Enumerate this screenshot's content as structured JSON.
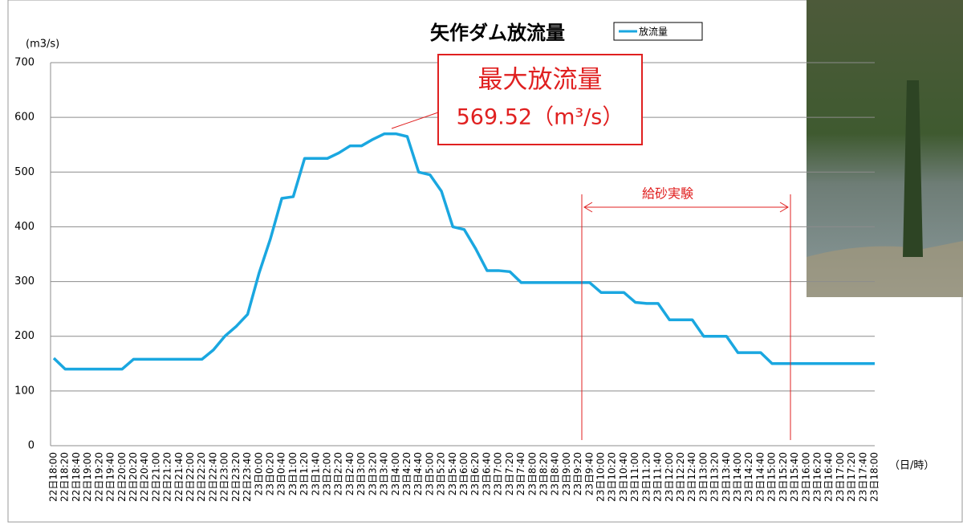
{
  "chart_data": {
    "type": "line",
    "title": "矢作ダム放流量",
    "y_label": "(m3/s)",
    "x_label": "（日/時）",
    "categories": [
      "22日18:00",
      "22日18:20",
      "22日18:40",
      "22日19:00",
      "22日19:20",
      "22日19:40",
      "22日20:00",
      "22日20:20",
      "22日20:40",
      "22日21:00",
      "22日21:20",
      "22日21:40",
      "22日22:00",
      "22日22:20",
      "22日22:40",
      "22日23:00",
      "22日23:20",
      "22日23:40",
      "23日0:00",
      "23日0:20",
      "23日0:40",
      "23日1:00",
      "23日1:20",
      "23日1:40",
      "23日2:00",
      "23日2:20",
      "23日2:40",
      "23日3:00",
      "23日3:20",
      "23日3:40",
      "23日4:00",
      "23日4:20",
      "23日4:40",
      "23日5:00",
      "23日5:20",
      "23日5:40",
      "23日6:00",
      "23日6:20",
      "23日6:40",
      "23日7:00",
      "23日7:20",
      "23日7:40",
      "23日8:00",
      "23日8:20",
      "23日8:40",
      "23日9:00",
      "23日9:20",
      "23日9:40",
      "23日10:00",
      "23日10:20",
      "23日10:40",
      "23日11:00",
      "23日11:20",
      "23日11:40",
      "23日12:00",
      "23日12:20",
      "23日12:40",
      "23日13:00",
      "23日13:20",
      "23日13:40",
      "23日14:00",
      "23日14:20",
      "23日14:40",
      "23日15:00",
      "23日15:20",
      "23日15:40",
      "23日16:00",
      "23日16:20",
      "23日16:40",
      "23日17:00",
      "23日17:20",
      "23日17:40",
      "23日18:00"
    ],
    "series": [
      {
        "name": "放流量",
        "color": "#1aa7e0",
        "values": [
          160,
          140,
          140,
          140,
          140,
          140,
          140,
          158,
          158,
          158,
          158,
          158,
          158,
          158,
          175,
          200,
          218,
          240,
          315,
          378,
          452,
          455,
          525,
          525,
          525,
          535,
          548,
          548,
          560,
          570,
          570,
          565,
          500,
          495,
          465,
          400,
          395,
          360,
          320,
          320,
          318,
          298,
          298,
          298,
          298,
          298,
          298,
          298,
          280,
          280,
          280,
          262,
          260,
          260,
          230,
          230,
          230,
          200,
          200,
          200,
          170,
          170,
          170,
          150,
          150,
          150,
          150,
          150,
          150,
          150,
          150,
          150,
          150
        ]
      }
    ],
    "ylim": [
      0,
      700
    ],
    "yticks": [
      0,
      100,
      200,
      300,
      400,
      500,
      600,
      700
    ],
    "grid": true,
    "annotations": {
      "max_label": "最大放流量",
      "max_value": "569.52（m³/s）",
      "experiment": "給砂実験"
    }
  }
}
